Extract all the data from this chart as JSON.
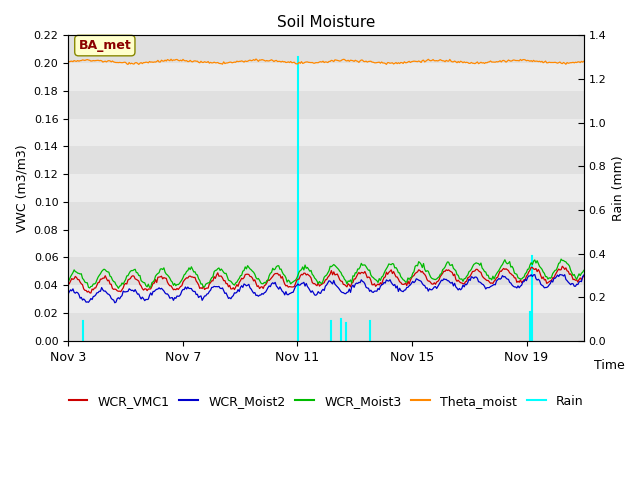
{
  "title": "Soil Moisture",
  "ylabel_left": "VWC (m3/m3)",
  "ylabel_right": "Rain (mm)",
  "xlabel": "Time",
  "ylim_left": [
    0.0,
    0.22
  ],
  "ylim_right": [
    0.0,
    1.4
  ],
  "yticks_left": [
    0.0,
    0.02,
    0.04,
    0.06,
    0.08,
    0.1,
    0.12,
    0.14,
    0.16,
    0.18,
    0.2,
    0.22
  ],
  "yticks_right": [
    0.0,
    0.2,
    0.4,
    0.6,
    0.8,
    1.0,
    1.2,
    1.4
  ],
  "xtick_labels": [
    "Nov 3",
    "Nov 7",
    "Nov 11",
    "Nov 15",
    "Nov 19"
  ],
  "band_colors": [
    "#e0e0e0",
    "#ececec"
  ],
  "annotation_label": "BA_met",
  "annotation_box_color": "#ffffcc",
  "annotation_text_color": "#8b0000",
  "colors": {
    "WCR_VMC1": "#cc0000",
    "WCR_Moist2": "#0000cc",
    "WCR_Moist3": "#00bb00",
    "Theta_moist": "#ff8800",
    "Rain": "#00ffff"
  },
  "legend_labels": [
    "WCR_VMC1",
    "WCR_Moist2",
    "WCR_Moist3",
    "Theta_moist",
    "Rain"
  ]
}
